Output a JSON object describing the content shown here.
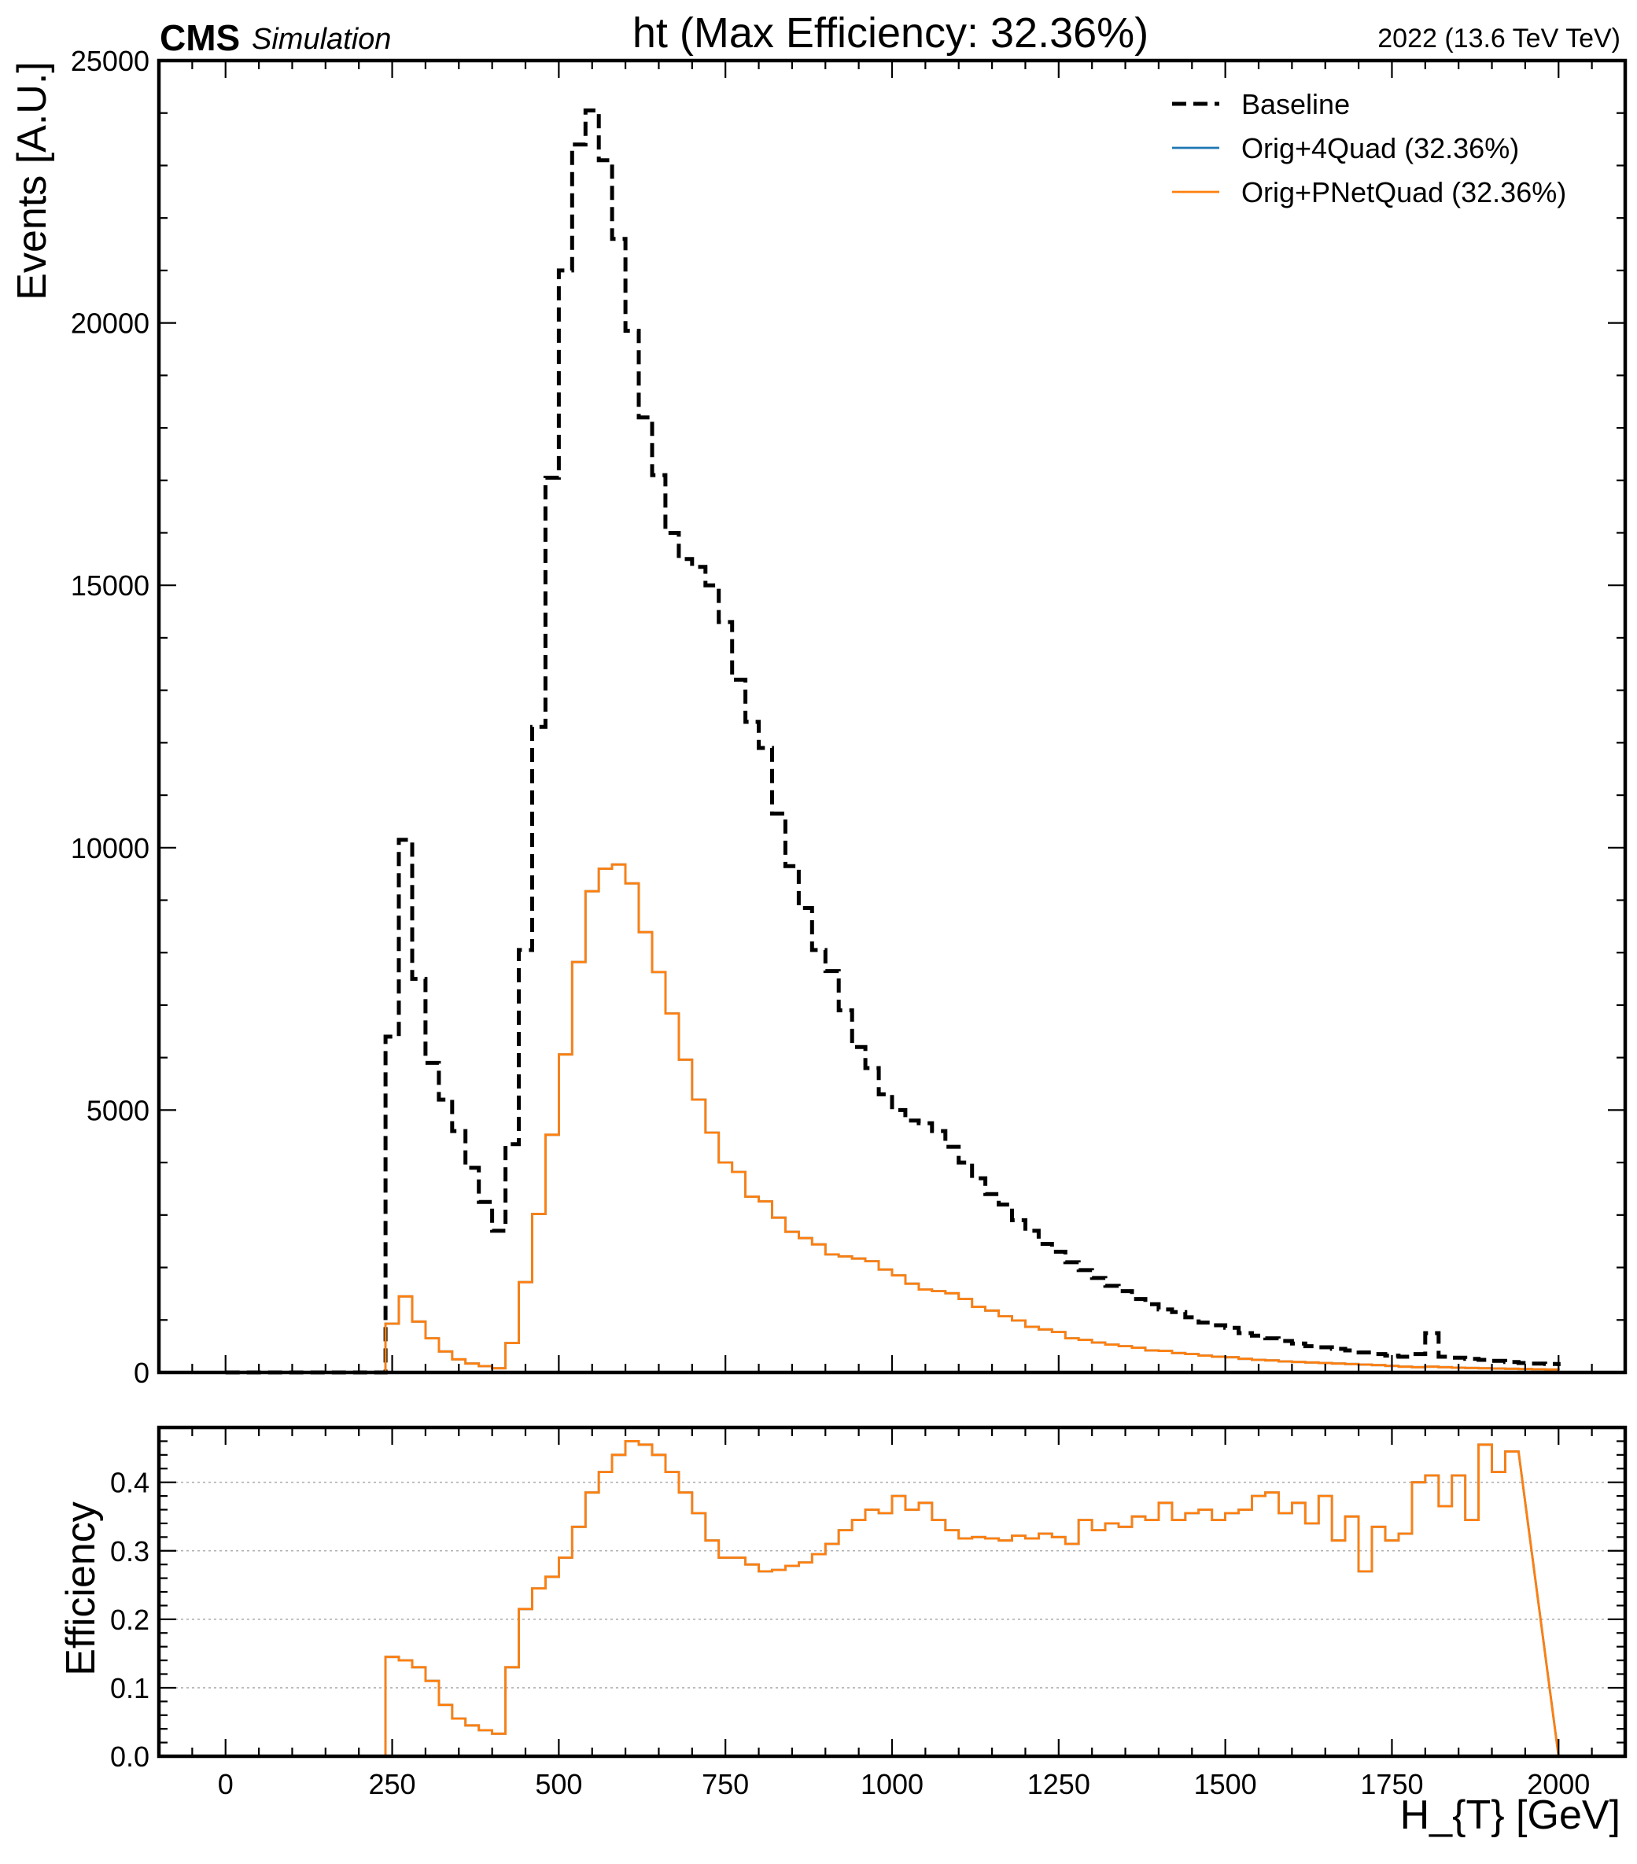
{
  "header": {
    "cms": "CMS",
    "simulation": "Simulation",
    "title": "ht (Max Efficiency: 32.36%)",
    "right": "2022 (13.6 TeV TeV)"
  },
  "chart_data": [
    {
      "type": "line",
      "panel": "main",
      "drawstyle": "steps",
      "ylabel": "Events [A.U.]",
      "xlim": [
        -100,
        2100
      ],
      "ylim": [
        0,
        25000
      ],
      "yticks": [
        0,
        5000,
        10000,
        15000,
        20000,
        25000
      ],
      "ytick_labels": [
        "0",
        "5000",
        "10000",
        "15000",
        "20000",
        "25000"
      ],
      "legend": "top-right",
      "bin_edges": [
        0,
        20,
        40,
        60,
        80,
        100,
        120,
        140,
        160,
        180,
        200,
        220,
        240,
        260,
        280,
        300,
        320,
        340,
        360,
        380,
        400,
        420,
        440,
        460,
        480,
        500,
        520,
        540,
        560,
        580,
        600,
        620,
        640,
        660,
        680,
        700,
        720,
        740,
        760,
        780,
        800,
        820,
        840,
        860,
        880,
        900,
        920,
        940,
        960,
        980,
        1000,
        1020,
        1040,
        1060,
        1080,
        1100,
        1120,
        1140,
        1160,
        1180,
        1200,
        1220,
        1240,
        1260,
        1280,
        1300,
        1320,
        1340,
        1360,
        1380,
        1400,
        1420,
        1440,
        1460,
        1480,
        1500,
        1520,
        1540,
        1560,
        1580,
        1600,
        1620,
        1640,
        1660,
        1680,
        1700,
        1720,
        1740,
        1760,
        1780,
        1800,
        1820,
        1840,
        1860,
        1880,
        1900,
        1920,
        1940,
        1960,
        1980,
        2000
      ],
      "series": [
        {
          "name": "Baseline",
          "color": "#000000",
          "style": "dashed",
          "values": [
            0,
            0,
            0,
            0,
            0,
            0,
            0,
            0,
            0,
            0,
            0,
            0,
            6400,
            10150,
            7500,
            5900,
            5200,
            4600,
            3900,
            3250,
            2700,
            4350,
            8050,
            12300,
            17050,
            21000,
            23400,
            24050,
            23100,
            21600,
            19850,
            18200,
            17100,
            16000,
            15500,
            15350,
            15000,
            14300,
            13200,
            12400,
            11900,
            10650,
            9650,
            8850,
            8050,
            7650,
            6900,
            6200,
            5800,
            5300,
            5000,
            4800,
            4750,
            4600,
            4300,
            4000,
            3700,
            3400,
            3200,
            2900,
            2700,
            2450,
            2300,
            2100,
            1950,
            1800,
            1650,
            1550,
            1400,
            1300,
            1200,
            1150,
            1050,
            950,
            900,
            850,
            750,
            700,
            650,
            600,
            550,
            500,
            480,
            450,
            420,
            380,
            350,
            320,
            300,
            350,
            750,
            300,
            280,
            260,
            240,
            220,
            200,
            180,
            170,
            160,
            120
          ]
        },
        {
          "name": "Orig+4Quad (32.36%)",
          "color": "#1f77b4",
          "style": "solid",
          "values": [
            0,
            0,
            0,
            0,
            0,
            0,
            0,
            0,
            0,
            0,
            0,
            0,
            930,
            1450,
            970,
            650,
            400,
            250,
            170,
            120,
            80,
            560,
            1720,
            3020,
            4530,
            6060,
            7820,
            9170,
            9600,
            9680,
            9320,
            8390,
            7630,
            6840,
            5960,
            5200,
            4570,
            4000,
            3820,
            3350,
            3260,
            2950,
            2680,
            2560,
            2440,
            2250,
            2210,
            2170,
            2120,
            1960,
            1850,
            1690,
            1580,
            1550,
            1510,
            1400,
            1250,
            1180,
            1070,
            990,
            870,
            820,
            770,
            650,
            620,
            570,
            530,
            500,
            470,
            420,
            410,
            370,
            350,
            320,
            300,
            290,
            260,
            240,
            230,
            210,
            200,
            190,
            180,
            170,
            160,
            150,
            140,
            125,
            110,
            100,
            110,
            100,
            90,
            85,
            80,
            75,
            70,
            65,
            60,
            55,
            50
          ]
        },
        {
          "name": "Orig+PNetQuad (32.36%)",
          "color": "#ff7f0e",
          "style": "solid",
          "values": [
            0,
            0,
            0,
            0,
            0,
            0,
            0,
            0,
            0,
            0,
            0,
            0,
            930,
            1450,
            970,
            650,
            400,
            250,
            170,
            120,
            80,
            560,
            1720,
            3020,
            4530,
            6060,
            7820,
            9170,
            9600,
            9680,
            9320,
            8390,
            7630,
            6840,
            5960,
            5200,
            4570,
            4000,
            3820,
            3350,
            3260,
            2950,
            2680,
            2560,
            2440,
            2250,
            2210,
            2170,
            2120,
            1960,
            1850,
            1690,
            1580,
            1550,
            1510,
            1400,
            1250,
            1180,
            1070,
            990,
            870,
            820,
            770,
            650,
            620,
            570,
            530,
            500,
            470,
            420,
            410,
            370,
            350,
            320,
            300,
            290,
            260,
            240,
            230,
            210,
            200,
            190,
            180,
            170,
            160,
            150,
            140,
            125,
            110,
            100,
            110,
            100,
            90,
            85,
            80,
            75,
            70,
            65,
            60,
            55,
            50
          ]
        }
      ]
    },
    {
      "type": "line",
      "panel": "ratio",
      "drawstyle": "steps",
      "ylabel": "Efficiency",
      "xlabel": "H_{T} [GeV]",
      "xlim": [
        -100,
        2100
      ],
      "ylim": [
        0,
        0.48
      ],
      "xticks": [
        0,
        250,
        500,
        750,
        1000,
        1250,
        1500,
        1750,
        2000
      ],
      "xtick_labels": [
        "0",
        "250",
        "500",
        "750",
        "1000",
        "1250",
        "1500",
        "1750",
        "2000"
      ],
      "yticks": [
        0,
        0.1,
        0.2,
        0.3,
        0.4
      ],
      "ytick_labels": [
        "0.0",
        "0.1",
        "0.2",
        "0.3",
        "0.4"
      ],
      "grid": "y",
      "bin_edges": [
        240,
        260,
        280,
        300,
        320,
        340,
        360,
        380,
        400,
        420,
        440,
        460,
        480,
        500,
        520,
        540,
        560,
        580,
        600,
        620,
        640,
        660,
        680,
        700,
        720,
        740,
        760,
        780,
        800,
        820,
        840,
        860,
        880,
        900,
        920,
        940,
        960,
        980,
        1000,
        1020,
        1040,
        1060,
        1080,
        1100,
        1120,
        1140,
        1160,
        1180,
        1200,
        1220,
        1240,
        1260,
        1280,
        1300,
        1320,
        1340,
        1360,
        1380,
        1400,
        1420,
        1440,
        1460,
        1480,
        1500,
        1520,
        1540,
        1560,
        1580,
        1600,
        1620,
        1640,
        1660,
        1680,
        1700,
        1720,
        1740,
        1760,
        1780,
        1800,
        1820,
        1840,
        1860,
        1880,
        1900,
        1920,
        1940,
        1960,
        1980,
        2000
      ],
      "series": [
        {
          "name": "Orig+4Quad (32.36%)",
          "color": "#1f77b4",
          "values": [
            0.145,
            0.14,
            0.13,
            0.11,
            0.075,
            0.055,
            0.045,
            0.038,
            0.033,
            0.13,
            0.215,
            0.245,
            0.262,
            0.29,
            0.335,
            0.385,
            0.415,
            0.44,
            0.46,
            0.455,
            0.44,
            0.415,
            0.385,
            0.355,
            0.315,
            0.29,
            0.29,
            0.28,
            0.27,
            0.272,
            0.278,
            0.283,
            0.295,
            0.31,
            0.33,
            0.345,
            0.36,
            0.355,
            0.38,
            0.36,
            0.37,
            0.345,
            0.33,
            0.318,
            0.32,
            0.318,
            0.315,
            0.322,
            0.318,
            0.325,
            0.32,
            0.31,
            0.345,
            0.33,
            0.34,
            0.335,
            0.35,
            0.345,
            0.37,
            0.345,
            0.355,
            0.36,
            0.345,
            0.355,
            0.36,
            0.38,
            0.385,
            0.355,
            0.37,
            0.34,
            0.38,
            0.315,
            0.35,
            0.27,
            0.335,
            0.315,
            0.325,
            0.4,
            0.41,
            0.365,
            0.41,
            0.345,
            0.455,
            0.415,
            0.445
          ]
        },
        {
          "name": "Orig+PNetQuad (32.36%)",
          "color": "#ff7f0e",
          "values": [
            0.145,
            0.14,
            0.13,
            0.11,
            0.075,
            0.055,
            0.045,
            0.038,
            0.033,
            0.13,
            0.215,
            0.245,
            0.262,
            0.29,
            0.335,
            0.385,
            0.415,
            0.44,
            0.46,
            0.455,
            0.44,
            0.415,
            0.385,
            0.355,
            0.315,
            0.29,
            0.29,
            0.28,
            0.27,
            0.272,
            0.278,
            0.283,
            0.295,
            0.31,
            0.33,
            0.345,
            0.36,
            0.355,
            0.38,
            0.36,
            0.37,
            0.345,
            0.33,
            0.318,
            0.32,
            0.318,
            0.315,
            0.322,
            0.318,
            0.325,
            0.32,
            0.31,
            0.345,
            0.33,
            0.34,
            0.335,
            0.35,
            0.345,
            0.37,
            0.345,
            0.355,
            0.36,
            0.345,
            0.355,
            0.36,
            0.38,
            0.385,
            0.355,
            0.37,
            0.34,
            0.38,
            0.315,
            0.35,
            0.27,
            0.335,
            0.315,
            0.325,
            0.4,
            0.41,
            0.365,
            0.41,
            0.345,
            0.455,
            0.415,
            0.445
          ]
        }
      ]
    }
  ]
}
